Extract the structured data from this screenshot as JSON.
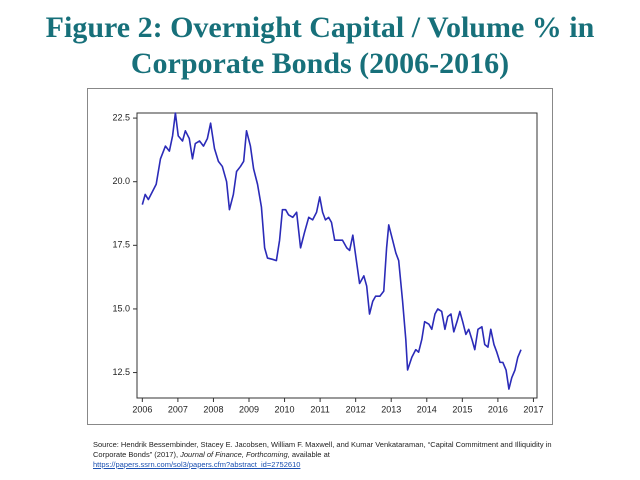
{
  "chart_data": {
    "type": "line",
    "title": "Figure 2: Overnight Capital / Volume % in Corporate Bonds (2006-2016)",
    "color": "#2b2bb8",
    "x": [
      2006.0,
      2006.08,
      2006.17,
      2006.28,
      2006.39,
      2006.51,
      2006.65,
      2006.76,
      2006.85,
      2006.93,
      2007.01,
      2007.13,
      2007.21,
      2007.32,
      2007.41,
      2007.49,
      2007.61,
      2007.72,
      2007.83,
      2007.92,
      2008.03,
      2008.14,
      2008.25,
      2008.37,
      2008.45,
      2008.56,
      2008.65,
      2008.76,
      2008.85,
      2008.93,
      2009.04,
      2009.13,
      2009.24,
      2009.35,
      2009.44,
      2009.52,
      2009.66,
      2009.77,
      2009.86,
      2009.94,
      2010.03,
      2010.11,
      2010.23,
      2010.34,
      2010.45,
      2010.56,
      2010.68,
      2010.79,
      2010.9,
      2010.99,
      2011.07,
      2011.15,
      2011.24,
      2011.32,
      2011.41,
      2011.52,
      2011.63,
      2011.75,
      2011.83,
      2011.92,
      2012.03,
      2012.11,
      2012.23,
      2012.31,
      2012.39,
      2012.48,
      2012.56,
      2012.68,
      2012.79,
      2012.87,
      2012.93,
      2013.04,
      2013.13,
      2013.21,
      2013.32,
      2013.41,
      2013.46,
      2013.58,
      2013.69,
      2013.77,
      2013.86,
      2013.94,
      2014.06,
      2014.14,
      2014.23,
      2014.31,
      2014.42,
      2014.51,
      2014.59,
      2014.68,
      2014.76,
      2014.85,
      2014.93,
      2015.01,
      2015.1,
      2015.18,
      2015.27,
      2015.35,
      2015.44,
      2015.55,
      2015.63,
      2015.72,
      2015.8,
      2015.89,
      2015.97,
      2016.06,
      2016.14,
      2016.23,
      2016.31,
      2016.39,
      2016.48,
      2016.56,
      2016.65
    ],
    "values": [
      19.1,
      19.5,
      19.3,
      19.6,
      19.9,
      20.9,
      21.4,
      21.2,
      21.8,
      22.7,
      21.8,
      21.6,
      22.0,
      21.7,
      20.9,
      21.5,
      21.6,
      21.4,
      21.7,
      22.3,
      21.3,
      20.8,
      20.6,
      20.0,
      18.9,
      19.5,
      20.4,
      20.6,
      20.8,
      22.0,
      21.4,
      20.5,
      19.9,
      19.0,
      17.4,
      17.0,
      16.95,
      16.9,
      17.7,
      18.9,
      18.9,
      18.7,
      18.6,
      18.8,
      17.4,
      18.0,
      18.6,
      18.5,
      18.8,
      19.4,
      18.8,
      18.5,
      18.6,
      18.4,
      17.7,
      17.7,
      17.7,
      17.4,
      17.3,
      17.9,
      16.8,
      16.0,
      16.3,
      15.9,
      14.8,
      15.3,
      15.5,
      15.5,
      15.7,
      17.4,
      18.3,
      17.7,
      17.2,
      16.9,
      15.3,
      13.8,
      12.6,
      13.1,
      13.4,
      13.3,
      13.8,
      14.5,
      14.4,
      14.2,
      14.8,
      15.0,
      14.9,
      14.2,
      14.7,
      14.8,
      14.1,
      14.5,
      14.9,
      14.5,
      14.0,
      14.2,
      13.8,
      13.4,
      14.2,
      14.3,
      13.6,
      13.5,
      14.2,
      13.6,
      13.3,
      12.9,
      12.9,
      12.6,
      11.85,
      12.3,
      12.6,
      13.1,
      13.4
    ],
    "xlim": [
      2005.85,
      2017.1
    ],
    "xticks": [
      2006,
      2007,
      2008,
      2009,
      2010,
      2011,
      2012,
      2013,
      2014,
      2015,
      2016,
      2017
    ],
    "ylim": [
      11.5,
      22.7
    ],
    "yticks": [
      12.5,
      {
        "value": 15,
        "label": "15.0"
      },
      17.5,
      {
        "value": 20,
        "label": "20.0"
      },
      22.5
    ]
  },
  "footnote": {
    "text": "Source: Hendrik Bessembinder, Stacey E. Jacobsen, William F. Maxwell, and Kumar Venkataraman, “Capital Commitment and Illiquidity in Corporate Bonds” (2017),",
    "journal": "Journal of Finance, Forthcoming,",
    "available": "available at",
    "url": "https://papers.ssrn.com/sol3/papers.cfm?abstract_id=2752610"
  }
}
